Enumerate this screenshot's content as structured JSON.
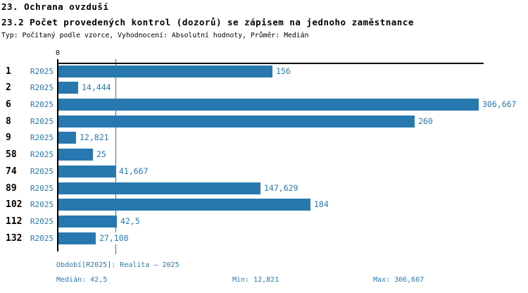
{
  "header": {
    "title": "23. Ochrana ovzduší",
    "subtitle": "23.2 Počet provedených kontrol (dozorů) se zápisem na jednoho zaměstnance",
    "meta": "Typ: Počítaný podle vzorce, Vyhodnocení: Absolutní hodnoty, Průměr: Medián"
  },
  "chart_data": {
    "type": "bar",
    "orientation": "horizontal",
    "title": "23.2 Počet provedených kontrol (dozorů) se zápisem na jednoho zaměstnance",
    "series_label": "R2025",
    "categories": [
      "1",
      "2",
      "6",
      "8",
      "9",
      "58",
      "74",
      "89",
      "102",
      "112",
      "132"
    ],
    "values": [
      156,
      14.444,
      306.667,
      260,
      12.821,
      25,
      41.667,
      147.629,
      184,
      42.5,
      27.108
    ],
    "value_labels": [
      "156",
      "14,444",
      "306,667",
      "260",
      "12,821",
      "25",
      "41,667",
      "147,629",
      "184",
      "42,5",
      "27,108"
    ],
    "xlim": [
      0,
      310
    ],
    "zero_label": "0",
    "median_value": 42.5,
    "median_line_shown": true,
    "grid": false,
    "legend_position": "bottom"
  },
  "footer": {
    "period": "Období[R2025]: Realita – 2025",
    "median": "Medián: 42,5",
    "min": "Min: 12,821",
    "max": "Max: 306,667"
  },
  "colors": {
    "accent_blue": "#2878b0",
    "axis_black": "#000000",
    "background": "#ffffff"
  }
}
